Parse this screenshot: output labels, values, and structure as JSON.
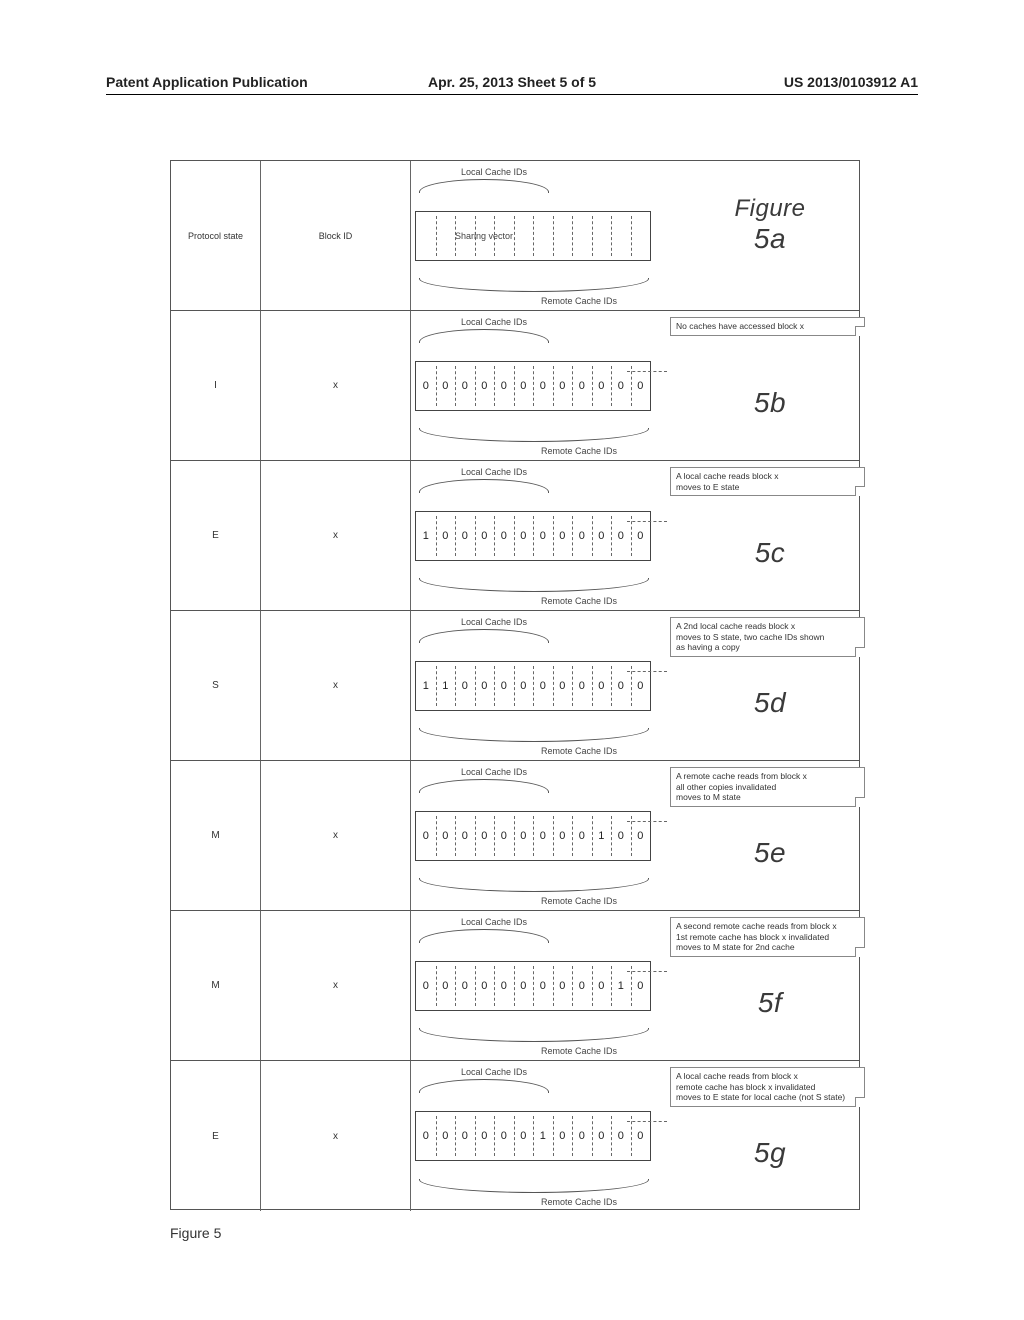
{
  "header": {
    "left": "Patent Application Publication",
    "center": "Apr. 25, 2013  Sheet 5 of 5",
    "right": "US 2013/0103912 A1"
  },
  "diagram": {
    "bit_count": 12,
    "local_label": "Local Cache IDs",
    "remote_label": "Remote Cache IDs",
    "sharing_vector_label": "Sharing vector",
    "sections": [
      {
        "id": "5a",
        "protocol": "Protocol state",
        "block": "Block ID",
        "bits": [
          "",
          "",
          "",
          "",
          "",
          "",
          "",
          "",
          "",
          "",
          "",
          ""
        ],
        "note": null,
        "hand_label_top": "Figure",
        "hand_label": "5a",
        "show_sharing_label": true
      },
      {
        "id": "5b",
        "protocol": "I",
        "block": "x",
        "bits": [
          "0",
          "0",
          "0",
          "0",
          "0",
          "0",
          "0",
          "0",
          "0",
          "0",
          "0",
          "0"
        ],
        "note": "No caches have accessed block x",
        "hand_label": "5b"
      },
      {
        "id": "5c",
        "protocol": "E",
        "block": "x",
        "bits": [
          "1",
          "0",
          "0",
          "0",
          "0",
          "0",
          "0",
          "0",
          "0",
          "0",
          "0",
          "0"
        ],
        "note": "A local cache reads block x\nmoves to E state",
        "hand_label": "5c"
      },
      {
        "id": "5d",
        "protocol": "S",
        "block": "x",
        "bits": [
          "1",
          "1",
          "0",
          "0",
          "0",
          "0",
          "0",
          "0",
          "0",
          "0",
          "0",
          "0"
        ],
        "note": "A 2nd local cache reads block x\nmoves to S state, two cache IDs shown\nas having a copy",
        "hand_label": "5d"
      },
      {
        "id": "5e",
        "protocol": "M",
        "block": "x",
        "bits": [
          "0",
          "0",
          "0",
          "0",
          "0",
          "0",
          "0",
          "0",
          "0",
          "1",
          "0",
          "0"
        ],
        "note": "A remote cache reads from block x\nall other copies invalidated\nmoves to M state",
        "hand_label": "5e"
      },
      {
        "id": "5f",
        "protocol": "M",
        "block": "x",
        "bits": [
          "0",
          "0",
          "0",
          "0",
          "0",
          "0",
          "0",
          "0",
          "0",
          "0",
          "1",
          "0"
        ],
        "note": "A second remote cache reads from block x\n1st remote cache has block x invalidated\nmoves to M state for 2nd cache",
        "hand_label": "5f"
      },
      {
        "id": "5g",
        "protocol": "E",
        "block": "x",
        "bits": [
          "0",
          "0",
          "0",
          "0",
          "0",
          "0",
          "1",
          "0",
          "0",
          "0",
          "0",
          "0"
        ],
        "note": "A local cache reads from block x\nremote cache has block x invalidated\nmoves to E state for local cache (not S state)",
        "hand_label": "5g"
      }
    ]
  },
  "caption": "Figure 5"
}
